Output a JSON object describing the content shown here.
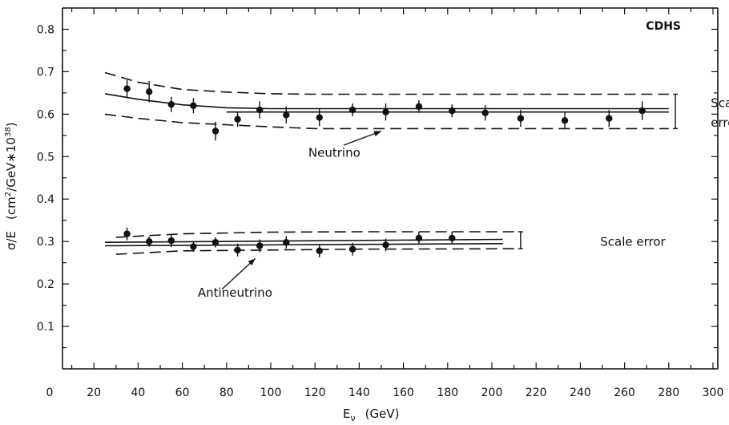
{
  "chart_data": {
    "type": "scatter",
    "title": "CDHS",
    "xlabel": "E",
    "xlabel_sub": "ν",
    "xlabel_unit": "(GeV)",
    "ylabel": "σ/E",
    "ylabel_unit_prefix": "(cm",
    "ylabel_unit_mid": "/GeV∗10",
    "ylabel_unit_close": ")",
    "ylabel_sup1": "2",
    "ylabel_sup2": "38",
    "xlim": [
      0,
      310
    ],
    "ylim": [
      0,
      0.85
    ],
    "x_ticks": [
      {
        "value": 0,
        "label": "0"
      },
      {
        "value": 20,
        "label": "20"
      },
      {
        "value": 40,
        "label": "40"
      },
      {
        "value": 60,
        "label": "60"
      },
      {
        "value": 80,
        "label": "80"
      },
      {
        "value": 100,
        "label": "100"
      },
      {
        "value": 120,
        "label": "120"
      },
      {
        "value": 140,
        "label": "140"
      },
      {
        "value": 160,
        "label": "160"
      },
      {
        "value": 180,
        "label": "180"
      },
      {
        "value": 200,
        "label": "200"
      },
      {
        "value": 220,
        "label": "220"
      },
      {
        "value": 240,
        "label": "240"
      },
      {
        "value": 260,
        "label": "260"
      },
      {
        "value": 280,
        "label": "280"
      },
      {
        "value": 300,
        "label": "300"
      }
    ],
    "x_minor_step": 10,
    "y_ticks": [
      {
        "value": 0.1,
        "label": "0.1"
      },
      {
        "value": 0.2,
        "label": "0.2"
      },
      {
        "value": 0.3,
        "label": "0.3"
      },
      {
        "value": 0.4,
        "label": "0.4"
      },
      {
        "value": 0.5,
        "label": "0.5"
      },
      {
        "value": 0.6,
        "label": "0.6"
      },
      {
        "value": 0.7,
        "label": "0.7"
      },
      {
        "value": 0.8,
        "label": "0.8"
      }
    ],
    "y_minor_step": 0.05,
    "grid": false,
    "series": [
      {
        "name": "Neutrino",
        "points": [
          {
            "x": 35,
            "y": 0.66,
            "err": 0.02
          },
          {
            "x": 45,
            "y": 0.653,
            "err": 0.025
          },
          {
            "x": 55,
            "y": 0.623,
            "err": 0.018
          },
          {
            "x": 65,
            "y": 0.62,
            "err": 0.018
          },
          {
            "x": 75,
            "y": 0.56,
            "err": 0.022
          },
          {
            "x": 85,
            "y": 0.588,
            "err": 0.018
          },
          {
            "x": 95,
            "y": 0.61,
            "err": 0.02
          },
          {
            "x": 107,
            "y": 0.598,
            "err": 0.02
          },
          {
            "x": 122,
            "y": 0.592,
            "err": 0.02
          },
          {
            "x": 137,
            "y": 0.61,
            "err": 0.015
          },
          {
            "x": 152,
            "y": 0.605,
            "err": 0.02
          },
          {
            "x": 167,
            "y": 0.618,
            "err": 0.015
          },
          {
            "x": 182,
            "y": 0.608,
            "err": 0.015
          },
          {
            "x": 197,
            "y": 0.603,
            "err": 0.018
          },
          {
            "x": 213,
            "y": 0.59,
            "err": 0.02
          },
          {
            "x": 233,
            "y": 0.585,
            "err": 0.02
          },
          {
            "x": 253,
            "y": 0.59,
            "err": 0.02
          },
          {
            "x": 268,
            "y": 0.608,
            "err": 0.022
          }
        ],
        "fit_curves": [
          {
            "style": "solid",
            "x": [
              25,
              40,
              60,
              80,
              100,
              280
            ],
            "y": [
              0.648,
              0.635,
              0.622,
              0.615,
              0.613,
              0.613
            ]
          },
          {
            "style": "solid",
            "x": [
              80,
              280
            ],
            "y": [
              0.605,
              0.605
            ]
          }
        ],
        "band_curves": [
          {
            "style": "dashed",
            "x": [
              25,
              40,
              60,
              80,
              100,
              120,
              280
            ],
            "y": [
              0.698,
              0.675,
              0.658,
              0.652,
              0.648,
              0.647,
              0.647
            ]
          },
          {
            "style": "dashed",
            "x": [
              25,
              40,
              60,
              80,
              100,
              120,
              280
            ],
            "y": [
              0.6,
              0.59,
              0.58,
              0.575,
              0.57,
              0.566,
              0.566
            ]
          }
        ],
        "scale_error_bar": {
          "x": 283,
          "y_low": 0.566,
          "y_high": 0.647
        }
      },
      {
        "name": "Antineutrino",
        "points": [
          {
            "x": 35,
            "y": 0.318,
            "err": 0.015
          },
          {
            "x": 45,
            "y": 0.3,
            "err": 0.012
          },
          {
            "x": 55,
            "y": 0.302,
            "err": 0.015
          },
          {
            "x": 65,
            "y": 0.288,
            "err": 0.012
          },
          {
            "x": 75,
            "y": 0.298,
            "err": 0.012
          },
          {
            "x": 85,
            "y": 0.28,
            "err": 0.015
          },
          {
            "x": 95,
            "y": 0.29,
            "err": 0.015
          },
          {
            "x": 107,
            "y": 0.298,
            "err": 0.015
          },
          {
            "x": 122,
            "y": 0.278,
            "err": 0.015
          },
          {
            "x": 137,
            "y": 0.282,
            "err": 0.015
          },
          {
            "x": 152,
            "y": 0.292,
            "err": 0.015
          },
          {
            "x": 167,
            "y": 0.308,
            "err": 0.015
          },
          {
            "x": 182,
            "y": 0.308,
            "err": 0.015
          }
        ],
        "fit_curves": [
          {
            "style": "solid",
            "x": [
              25,
              205
            ],
            "y": [
              0.298,
              0.305
            ]
          },
          {
            "style": "solid",
            "x": [
              25,
              205
            ],
            "y": [
              0.29,
              0.295
            ]
          }
        ],
        "band_curves": [
          {
            "style": "dashed",
            "x": [
              30,
              60,
              100,
              140,
              210
            ],
            "y": [
              0.31,
              0.318,
              0.322,
              0.323,
              0.323
            ]
          },
          {
            "style": "dashed",
            "x": [
              30,
              60,
              100,
              140,
              210
            ],
            "y": [
              0.27,
              0.278,
              0.28,
              0.282,
              0.283
            ]
          }
        ],
        "scale_error_bar": {
          "x": 213,
          "y_low": 0.283,
          "y_high": 0.323
        }
      }
    ],
    "annotations": [
      {
        "id": "neutrino",
        "text": "Neutrino",
        "text_x": 117,
        "text_y": 0.5,
        "arrow_from": [
          133,
          0.527
        ],
        "arrow_to": [
          150,
          0.56
        ]
      },
      {
        "id": "antineutrino",
        "text": "Antineutrino",
        "text_x": 67,
        "text_y": 0.17,
        "arrow_from": [
          78,
          0.188
        ],
        "arrow_to": [
          93,
          0.26
        ]
      },
      {
        "id": "scale-error-top-1",
        "text": "Scale",
        "text_x": 299,
        "text_y": 0.617
      },
      {
        "id": "scale-error-top-2",
        "text": "error",
        "text_x": 299,
        "text_y": 0.57
      },
      {
        "id": "scale-error-bottom",
        "text": "Scale error",
        "text_x": 249,
        "text_y": 0.29
      }
    ]
  }
}
